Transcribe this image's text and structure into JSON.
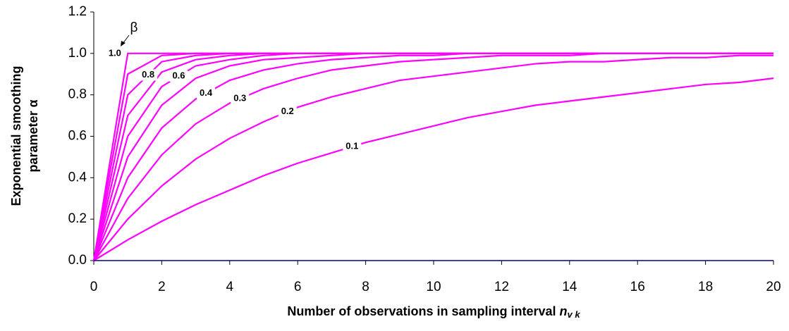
{
  "chart_data": {
    "type": "line",
    "y_label_lines": [
      "Exponential smoothing",
      "parameter α"
    ],
    "x_label": "Number of observations in sampling interval ",
    "x_label_symbol": "n",
    "x_label_subscript": "v k",
    "parameter_symbol": "β",
    "x": [
      0,
      1,
      2,
      3,
      4,
      5,
      6,
      7,
      8,
      9,
      10,
      11,
      12,
      13,
      14,
      15,
      16,
      17,
      18,
      19,
      20
    ],
    "xlim": [
      0,
      20
    ],
    "xticks": [
      0,
      2,
      4,
      6,
      8,
      10,
      12,
      14,
      16,
      18,
      20
    ],
    "ylim": [
      0,
      1.2
    ],
    "yticks": [
      {
        "value": 0,
        "label": "0.0"
      },
      0.2,
      0.4,
      0.6,
      0.8,
      {
        "value": 1,
        "label": "1.0"
      },
      1.2
    ],
    "grid": false,
    "color": "#ff00ff",
    "series": [
      {
        "name": "1.0",
        "values": [
          0,
          1,
          1,
          1,
          1,
          1,
          1,
          1,
          1,
          1,
          1,
          1,
          1,
          1,
          1,
          1,
          1,
          1,
          1,
          1,
          1
        ]
      },
      {
        "values": [
          0,
          0.9,
          0.99,
          1,
          1,
          1,
          1,
          1,
          1,
          1,
          1,
          1,
          1,
          1,
          1,
          1,
          1,
          1,
          1,
          1,
          1
        ]
      },
      {
        "name": "0.8",
        "values": [
          0,
          0.8,
          0.96,
          0.99,
          1,
          1,
          1,
          1,
          1,
          1,
          1,
          1,
          1,
          1,
          1,
          1,
          1,
          1,
          1,
          1,
          1
        ]
      },
      {
        "values": [
          0,
          0.7,
          0.91,
          0.97,
          0.99,
          1,
          1,
          1,
          1,
          1,
          1,
          1,
          1,
          1,
          1,
          1,
          1,
          1,
          1,
          1,
          1
        ]
      },
      {
        "name": "0.6",
        "values": [
          0,
          0.6,
          0.84,
          0.94,
          0.97,
          0.99,
          1,
          1,
          1,
          1,
          1,
          1,
          1,
          1,
          1,
          1,
          1,
          1,
          1,
          1,
          1
        ]
      },
      {
        "values": [
          0,
          0.5,
          0.75,
          0.88,
          0.94,
          0.97,
          0.98,
          0.99,
          1,
          1,
          1,
          1,
          1,
          1,
          1,
          1,
          1,
          1,
          1,
          1,
          1
        ]
      },
      {
        "name": "0.4",
        "values": [
          0,
          0.4,
          0.64,
          0.78,
          0.87,
          0.92,
          0.95,
          0.97,
          0.98,
          0.99,
          0.99,
          1,
          1,
          1,
          1,
          1,
          1,
          1,
          1,
          1,
          1
        ]
      },
      {
        "name": "0.3",
        "values": [
          0,
          0.3,
          0.51,
          0.66,
          0.76,
          0.83,
          0.88,
          0.92,
          0.94,
          0.96,
          0.97,
          0.98,
          0.99,
          0.99,
          0.99,
          1,
          1,
          1,
          1,
          1,
          1
        ]
      },
      {
        "name": "0.2",
        "values": [
          0,
          0.2,
          0.36,
          0.49,
          0.59,
          0.67,
          0.74,
          0.79,
          0.83,
          0.87,
          0.89,
          0.91,
          0.93,
          0.95,
          0.96,
          0.96,
          0.97,
          0.98,
          0.98,
          0.99,
          0.99
        ]
      },
      {
        "name": "0.1",
        "values": [
          0,
          0.1,
          0.19,
          0.27,
          0.34,
          0.41,
          0.47,
          0.52,
          0.57,
          0.61,
          0.65,
          0.69,
          0.72,
          0.75,
          0.77,
          0.79,
          0.81,
          0.83,
          0.85,
          0.86,
          0.88
        ]
      }
    ]
  }
}
